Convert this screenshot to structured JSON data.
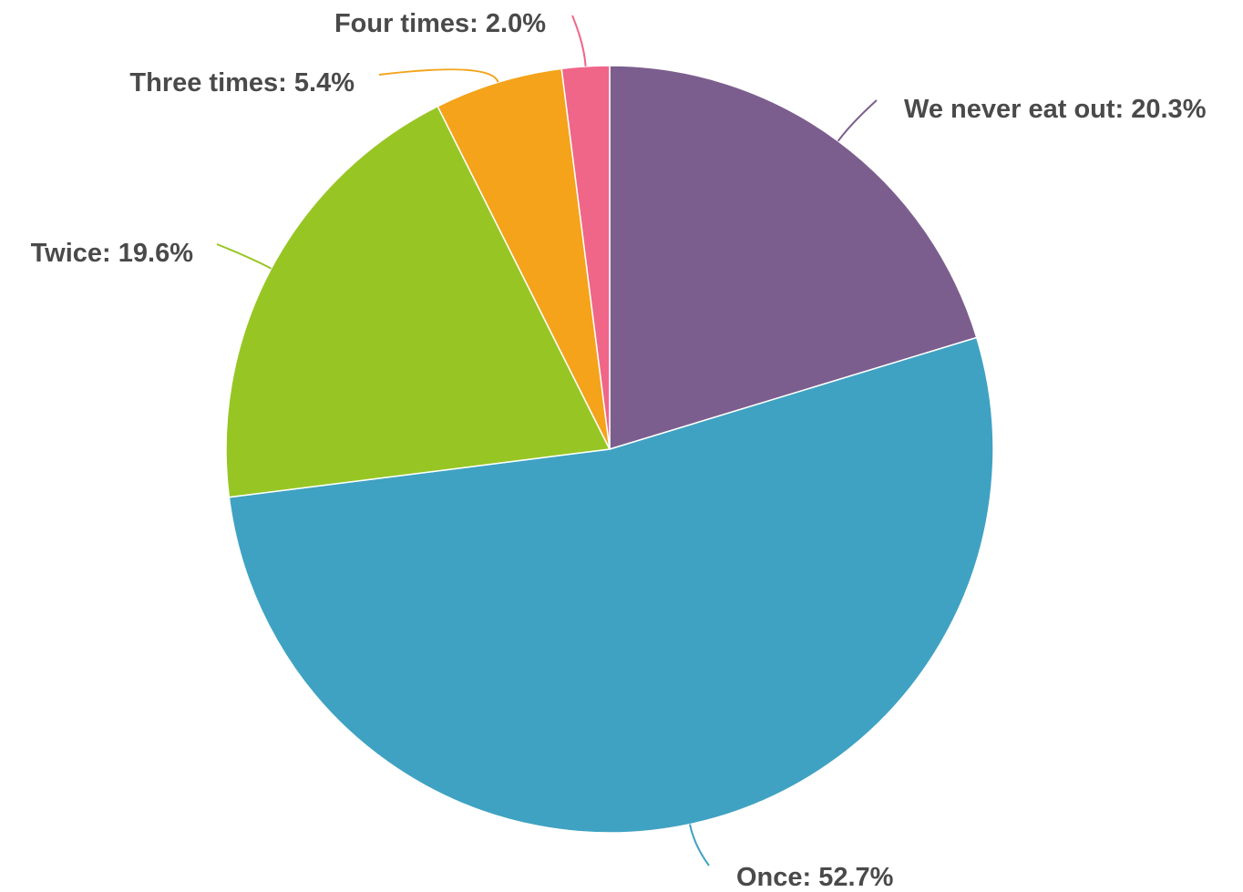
{
  "chart_data": {
    "type": "pie",
    "start_angle_deg": 0,
    "direction": "clockwise",
    "legend": "none",
    "slices": [
      {
        "label": "We never eat out",
        "value": 20.3,
        "color": "#7b5e8e",
        "text": "We never eat out: 20.3%"
      },
      {
        "label": "Once",
        "value": 52.7,
        "color": "#3fa2c2",
        "text": "Once: 52.7%"
      },
      {
        "label": "Twice",
        "value": 19.6,
        "color": "#97c624",
        "text": "Twice: 19.6%"
      },
      {
        "label": "Three times",
        "value": 5.4,
        "color": "#f4a31a",
        "text": "Three times: 5.4%"
      },
      {
        "label": "Four times",
        "value": 2.0,
        "color": "#ef6689",
        "text": "Four times: 2.0%"
      }
    ]
  }
}
